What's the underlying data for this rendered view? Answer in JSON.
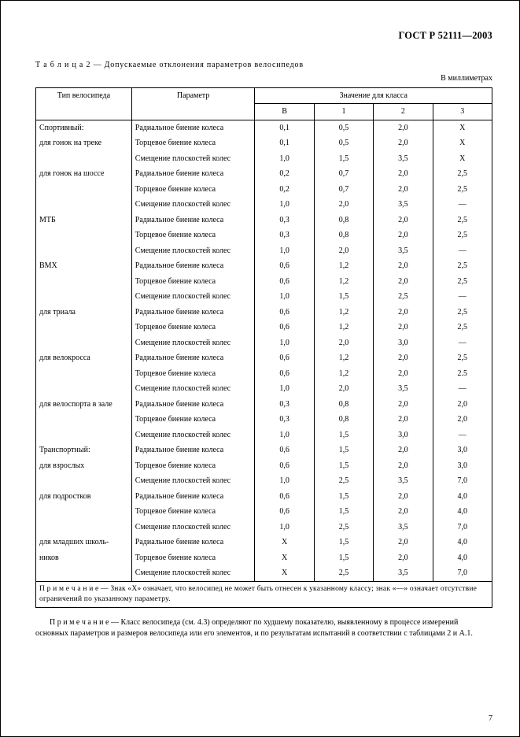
{
  "document": {
    "header": "ГОСТ Р 52111—2003",
    "table_caption_prefix": "Т а б л и ц а 2 — ",
    "table_caption": "Допускаемые отклонения параметров велосипедов",
    "unit_text": "В миллиметрах",
    "page_number": "7"
  },
  "colors": {
    "text": "#000000",
    "background": "#ffffff",
    "border": "#000000"
  },
  "font": {
    "family": "Times New Roman",
    "body_size_pt": 9,
    "header_size_pt": 11
  },
  "table": {
    "head": {
      "type": "Тип велосипеда",
      "param": "Параметр",
      "values_title": "Значение для класса",
      "classes": [
        "В",
        "1",
        "2",
        "3"
      ]
    },
    "groups": [
      {
        "type_lines": [
          "Спортивный:",
          "для гонок на треке"
        ],
        "rows": [
          {
            "param": "Радиальное биение колеса",
            "v": [
              "0,1",
              "0,5",
              "2,0",
              "Х"
            ]
          },
          {
            "param": "Торцевое биение колеса",
            "v": [
              "0,1",
              "0,5",
              "2,0",
              "Х"
            ]
          },
          {
            "param": "Смещение плоскостей колес",
            "v": [
              "1,0",
              "1,5",
              "3,5",
              "Х"
            ]
          }
        ]
      },
      {
        "type_lines": [
          "для гонок на шоссе"
        ],
        "rows": [
          {
            "param": "Радиальное биение колеса",
            "v": [
              "0,2",
              "0,7",
              "2,0",
              "2,5"
            ]
          },
          {
            "param": "Торцевое биение колеса",
            "v": [
              "0,2",
              "0,7",
              "2,0",
              "2,5"
            ]
          },
          {
            "param": "Смещение плоскостей колес",
            "v": [
              "1,0",
              "2,0",
              "3,5",
              "—"
            ]
          }
        ]
      },
      {
        "type_lines": [
          "МТБ"
        ],
        "rows": [
          {
            "param": "Радиальное биение колеса",
            "v": [
              "0,3",
              "0,8",
              "2,0",
              "2,5"
            ]
          },
          {
            "param": "Торцевое биение колеса",
            "v": [
              "0,3",
              "0,8",
              "2,0",
              "2,5"
            ]
          },
          {
            "param": "Смещение плоскостей колес",
            "v": [
              "1,0",
              "2,0",
              "3,5",
              "—"
            ]
          }
        ]
      },
      {
        "type_lines": [
          "ВМХ"
        ],
        "rows": [
          {
            "param": "Радиальное биение колеса",
            "v": [
              "0,6",
              "1,2",
              "2,0",
              "2,5"
            ]
          },
          {
            "param": "Торцевое биение колеса",
            "v": [
              "0,6",
              "1,2",
              "2,0",
              "2,5"
            ]
          },
          {
            "param": "Смещение плоскостей колес",
            "v": [
              "1,0",
              "1,5",
              "2,5",
              "—"
            ]
          }
        ]
      },
      {
        "type_lines": [
          "для триала"
        ],
        "rows": [
          {
            "param": "Радиальное биение колеса",
            "v": [
              "0,6",
              "1,2",
              "2,0",
              "2,5"
            ]
          },
          {
            "param": "Торцевое биение колеса",
            "v": [
              "0,6",
              "1,2",
              "2,0",
              "2,5"
            ]
          },
          {
            "param": "Смещение плоскостей колес",
            "v": [
              "1,0",
              "2,0",
              "3,0",
              "—"
            ]
          }
        ]
      },
      {
        "type_lines": [
          "для велокросса"
        ],
        "rows": [
          {
            "param": "Радиальное биение колеса",
            "v": [
              "0,6",
              "1,2",
              "2,0",
              "2,5"
            ]
          },
          {
            "param": "Торцевое биение колеса",
            "v": [
              "0,6",
              "1,2",
              "2,0",
              "2.5"
            ]
          },
          {
            "param": "Смещение плоскостей колес",
            "v": [
              "1,0",
              "2,0",
              "3,5",
              "—"
            ]
          }
        ]
      },
      {
        "type_lines": [
          "для велоспорта в зале"
        ],
        "rows": [
          {
            "param": "Радиальное биение колеса",
            "v": [
              "0,3",
              "0,8",
              "2,0",
              "2,0"
            ]
          },
          {
            "param": "Торцевое биение колеса",
            "v": [
              "0,3",
              "0,8",
              "2,0",
              "2,0"
            ]
          },
          {
            "param": "Смещение плоскостей колес",
            "v": [
              "1,0",
              "1,5",
              "3,0",
              "—"
            ]
          }
        ]
      },
      {
        "type_lines": [
          "Транспортный:",
          "для взрослых"
        ],
        "rows": [
          {
            "param": "Радиальное биение колеса",
            "v": [
              "0,6",
              "1,5",
              "2,0",
              "3,0"
            ]
          },
          {
            "param": "Торцевое биение колеса",
            "v": [
              "0,6",
              "1,5",
              "2,0",
              "3,0"
            ]
          },
          {
            "param": "Смещение плоскостей колес",
            "v": [
              "1,0",
              "2,5",
              "3,5",
              "7,0"
            ]
          }
        ]
      },
      {
        "type_lines": [
          "для подростков"
        ],
        "rows": [
          {
            "param": "Радиальное биение колеса",
            "v": [
              "0,6",
              "1,5",
              "2,0",
              "4,0"
            ]
          },
          {
            "param": "Торцевое биение колеса",
            "v": [
              "0,6",
              "1,5",
              "2,0",
              "4,0"
            ]
          },
          {
            "param": "Смещение плоскостей колес",
            "v": [
              "1,0",
              "2,5",
              "3,5",
              "7,0"
            ]
          }
        ]
      },
      {
        "type_lines": [
          "для младших школь-",
          "ников"
        ],
        "rows": [
          {
            "param": "Радиальное биение колеса",
            "v": [
              "Х",
              "1,5",
              "2,0",
              "4,0"
            ]
          },
          {
            "param": "Торцевое биение колеса",
            "v": [
              "Х",
              "1,5",
              "2,0",
              "4,0"
            ]
          },
          {
            "param": "Смещение плоскостей колес",
            "v": [
              "Х",
              "2,5",
              "3,5",
              "7,0"
            ]
          }
        ]
      }
    ],
    "footnote_in_table": "П р и м е ч а н и е — Знак «Х» означает, что велосипед не может быть отнесен к указанному классу; знак «—» означает отсутствие ограничений по указанному параметру."
  },
  "footnote": "П р и м е ч а н и е — Класс велосипеда (см. 4.3) определяют по худшему показателю, выявленному в процессе измерений основных параметров и размеров велосипеда или его элементов, и по результатам испытаний в соответствии с таблицами 2 и А.1."
}
